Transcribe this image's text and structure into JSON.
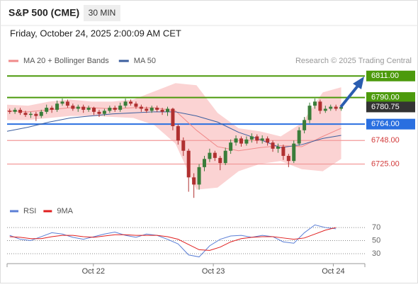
{
  "header": {
    "title": "S&P 500 (CME)",
    "interval": "30 MIN",
    "timestamp": "Friday, October 24, 2025 2:00:09 AM CET"
  },
  "chart_data": [
    {
      "type": "candlestick",
      "credit": "Research © 2025 Trading Central",
      "up_color": "#3a7d3a",
      "down_color": "#b03030",
      "open": [
        6777,
        6776,
        6778,
        6775,
        6773,
        6774,
        6772,
        6776,
        6780,
        6778,
        6784,
        6786,
        6782,
        6779,
        6781,
        6778,
        6780,
        6776,
        6774,
        6777,
        6780,
        6778,
        6782,
        6786,
        6784,
        6781,
        6779,
        6777,
        6780,
        6778,
        6776,
        6779,
        6762,
        6748,
        6738,
        6712,
        6705,
        6722,
        6730,
        6736,
        6731,
        6726,
        6738,
        6746,
        6750,
        6745,
        6749,
        6752,
        6748,
        6750,
        6746,
        6740,
        6742,
        6733,
        6728,
        6745,
        6758,
        6768,
        6782,
        6786,
        6777,
        6779,
        6781,
        6779
      ],
      "high": [
        6779,
        6780,
        6780,
        6777,
        6776,
        6776,
        6778,
        6783,
        6782,
        6787,
        6789,
        6788,
        6784,
        6783,
        6783,
        6782,
        6781,
        6778,
        6779,
        6782,
        6782,
        6785,
        6789,
        6788,
        6786,
        6783,
        6781,
        6782,
        6782,
        6780,
        6781,
        6780,
        6764,
        6751,
        6740,
        6716,
        6725,
        6733,
        6740,
        6738,
        6733,
        6741,
        6749,
        6753,
        6752,
        6752,
        6755,
        6754,
        6753,
        6752,
        6748,
        6745,
        6744,
        6735,
        6748,
        6761,
        6771,
        6785,
        6789,
        6788,
        6782,
        6783,
        6783,
        6782
      ],
      "low": [
        6774,
        6774,
        6773,
        6771,
        6770,
        6767,
        6770,
        6774,
        6775,
        6776,
        6782,
        6780,
        6777,
        6776,
        6775,
        6776,
        6773,
        6771,
        6772,
        6775,
        6776,
        6776,
        6780,
        6782,
        6779,
        6776,
        6775,
        6775,
        6776,
        6773,
        6772,
        6758,
        6744,
        6733,
        6698,
        6692,
        6700,
        6718,
        6727,
        6728,
        6719,
        6724,
        6735,
        6743,
        6742,
        6743,
        6746,
        6745,
        6745,
        6743,
        6737,
        6736,
        6729,
        6722,
        6726,
        6743,
        6755,
        6765,
        6779,
        6774,
        6775,
        6777,
        6777,
        6777
      ],
      "close": [
        6776,
        6778,
        6775,
        6773,
        6774,
        6772,
        6776,
        6780,
        6778,
        6784,
        6786,
        6782,
        6779,
        6781,
        6778,
        6780,
        6776,
        6774,
        6777,
        6780,
        6778,
        6782,
        6786,
        6784,
        6781,
        6779,
        6777,
        6780,
        6778,
        6776,
        6779,
        6762,
        6748,
        6738,
        6712,
        6705,
        6722,
        6730,
        6736,
        6731,
        6726,
        6738,
        6746,
        6750,
        6745,
        6749,
        6752,
        6748,
        6750,
        6746,
        6740,
        6742,
        6733,
        6728,
        6745,
        6758,
        6768,
        6782,
        6786,
        6777,
        6779,
        6781,
        6779,
        6780.75
      ],
      "indicators": {
        "x": [
          0,
          4,
          8,
          12,
          16,
          20,
          24,
          28,
          32,
          36,
          40,
          44,
          48,
          52,
          56,
          60,
          63.5
        ],
        "series": [
          {
            "name": "MA 20 + Bollinger Bands",
            "color": "#f08a8a",
            "band_color": "#fbd3d3",
            "values": [
              6777,
              6776,
              6778,
              6780,
              6780,
              6779,
              6780,
              6780,
              6777,
              6758,
              6742,
              6738,
              6741,
              6743,
              6742,
              6752,
              6760
            ],
            "upper": [
              6783,
              6782,
              6786,
              6788,
              6786,
              6786,
              6788,
              6796,
              6804,
              6802,
              6775,
              6760,
              6757,
              6752,
              6765,
              6795,
              6800
            ],
            "lower": [
              6768,
              6768,
              6770,
              6772,
              6772,
              6771,
              6770,
              6763,
              6745,
              6700,
              6702,
              6718,
              6725,
              6728,
              6720,
              6718,
              6730
            ]
          },
          {
            "name": "MA 50",
            "color": "#3b5e9e",
            "values": [
              6757,
              6761,
              6766,
              6770,
              6772,
              6774,
              6775,
              6776,
              6776,
              6772,
              6766,
              6756,
              6749,
              6741,
              6744,
              6750,
              6753
            ]
          }
        ]
      },
      "levels": [
        {
          "value": 6811,
          "label": "6811.00",
          "color": "#4c9a0c",
          "label_box": true
        },
        {
          "value": 6790,
          "label": "6790.00",
          "color": "#4c9a0c",
          "label_box": true
        },
        {
          "value": 6764,
          "label": "6764.00",
          "color": "#2a6fe0",
          "label_box": true
        },
        {
          "value": 6748,
          "label": "6748.00",
          "color": "#f29a9a",
          "label_box": false
        },
        {
          "value": 6725,
          "label": "6725.00",
          "color": "#f29a9a",
          "label_box": false
        }
      ],
      "last_price_color": "#333333",
      "xlim": [
        0,
        68
      ],
      "ylim": [
        6688,
        6816
      ]
    },
    {
      "type": "line",
      "x": [
        0.5,
        2.5,
        4.5,
        6.5,
        8.5,
        10.5,
        12.5,
        14.5,
        16.5,
        18.5,
        20.5,
        22.5,
        24.5,
        26.5,
        28.5,
        30.5,
        32.5,
        34.5,
        36.5,
        38.5,
        40.5,
        42.5,
        44.5,
        46.5,
        48.5,
        50.5,
        52.5,
        54.5,
        56.5,
        58.5,
        60.5,
        62.5
      ],
      "series": [
        {
          "name": "RSI",
          "color": "#5b7fd6",
          "values": [
            58,
            52,
            50,
            56,
            62,
            60,
            55,
            52,
            56,
            60,
            63,
            58,
            55,
            60,
            58,
            52,
            45,
            28,
            25,
            42,
            52,
            57,
            58,
            55,
            58,
            56,
            48,
            46,
            62,
            74,
            70,
            68
          ]
        },
        {
          "name": "9MA",
          "color": "#e01e1e",
          "values": [
            56,
            55,
            53,
            53,
            56,
            58,
            58,
            56,
            55,
            57,
            59,
            59,
            58,
            58,
            58,
            56,
            52,
            44,
            36,
            35,
            40,
            48,
            53,
            55,
            56,
            56,
            54,
            52,
            54,
            60,
            66,
            70
          ]
        }
      ],
      "xlim": [
        0,
        68
      ],
      "ylim": [
        18,
        82
      ],
      "yticks": [
        70,
        50,
        30
      ],
      "xticks": [
        {
          "value": 16.4,
          "label": "Oct 22"
        },
        {
          "value": 39.2,
          "label": "Oct 23"
        },
        {
          "value": 62.0,
          "label": "Oct 24"
        }
      ]
    }
  ]
}
